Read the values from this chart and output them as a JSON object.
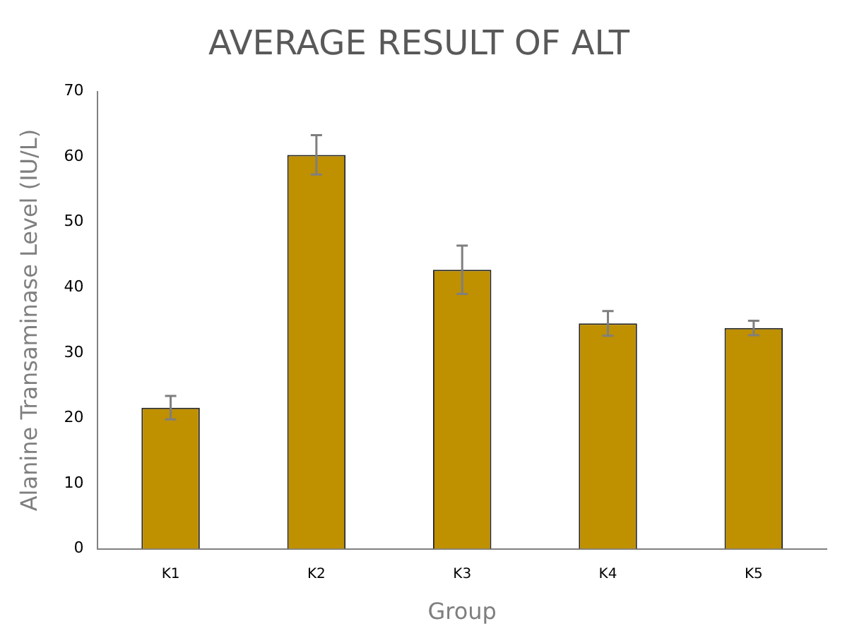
{
  "chart_data": {
    "type": "bar",
    "title": "AVERAGE RESULT OF ALT",
    "xlabel": "Group",
    "ylabel": "Alanine Transaminase Level (IU/L)",
    "categories": [
      "K1",
      "K2",
      "K3",
      "K4",
      "K5"
    ],
    "values": [
      21.6,
      60.3,
      42.7,
      34.5,
      33.8
    ],
    "errors": [
      1.8,
      3.0,
      3.7,
      1.9,
      1.1
    ],
    "color": "#bf9000",
    "ylim": [
      0,
      70
    ],
    "yticks": [
      0,
      10,
      20,
      30,
      40,
      50,
      60,
      70
    ],
    "grid": false,
    "legend": false
  }
}
